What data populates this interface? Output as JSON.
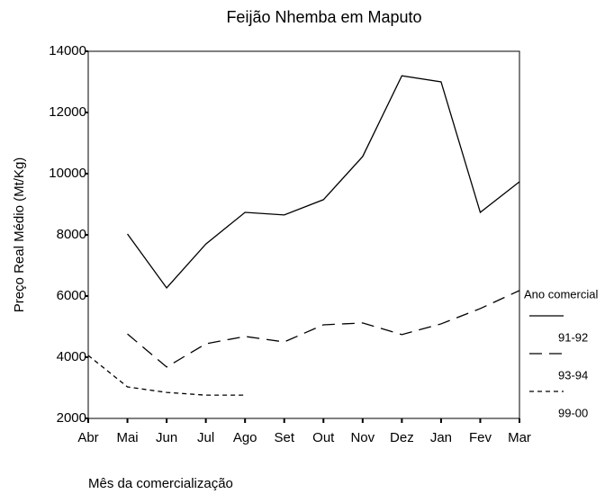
{
  "chart_data": {
    "type": "line",
    "title": "Feijão Nhemba em Maputo",
    "x_label": "Mês da comercialização",
    "y_label": "Preço Real Médio (Mt/Kg)",
    "legend_title": "Ano comercial",
    "categories": [
      "Abr",
      "Mai",
      "Jun",
      "Jul",
      "Ago",
      "Set",
      "Out",
      "Nov",
      "Dez",
      "Jan",
      "Fev",
      "Mar"
    ],
    "series": [
      {
        "name": "91-92",
        "color": "#000000",
        "style": "solid",
        "values": [
          null,
          8030,
          6265,
          7700,
          8735,
          8650,
          9150,
          10560,
          13200,
          13000,
          8735,
          9735
        ]
      },
      {
        "name": "93-94",
        "color": "#000000",
        "style": "dashed",
        "values": [
          null,
          4760,
          3680,
          4440,
          4680,
          4500,
          5060,
          5120,
          4740,
          5090,
          5590,
          6180
        ]
      },
      {
        "name": "99-00",
        "color": "#000000",
        "style": "dotted",
        "values": [
          4060,
          3030,
          2850,
          2760,
          2760,
          null,
          null,
          null,
          null,
          null,
          null,
          null
        ]
      }
    ],
    "ylim": [
      2000,
      14000
    ],
    "yticks": [
      2000,
      4000,
      6000,
      8000,
      10000,
      12000,
      14000
    ],
    "grid": false,
    "legend": "right"
  }
}
